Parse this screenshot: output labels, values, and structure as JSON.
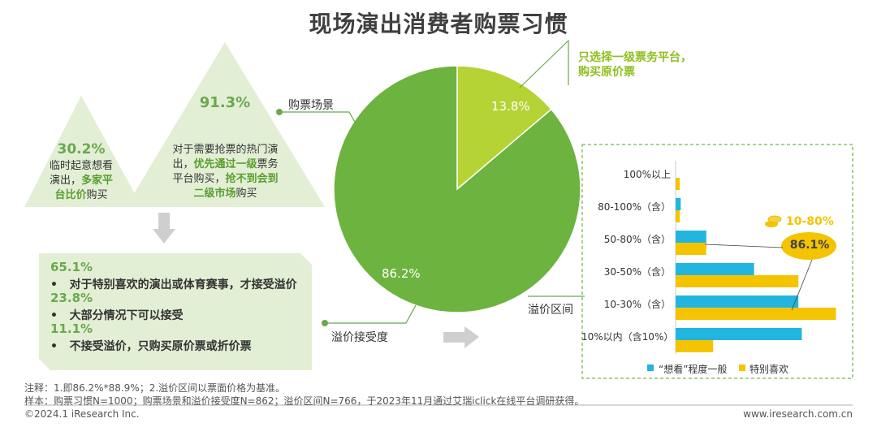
{
  "title": "现场演出消费者购票习惯",
  "triangles": {
    "small": {
      "pct": "30.2%",
      "line1": "临时起意想看",
      "line2a": "演出，",
      "line2b": "多家平",
      "line3a": "台比价",
      "line3b": "购买"
    },
    "large": {
      "pct": "91.3%",
      "line1": "对于需要抢票的热门演",
      "line2a": "出，",
      "line2b": "优先通过一级",
      "line2c": "票务",
      "line3a": "平台购买，",
      "line3b": "抢不到会到",
      "line4a": "二级市场",
      "line4b": "购买"
    }
  },
  "acceptance": {
    "items": [
      {
        "pct": "65.1%",
        "text": "对于特别喜欢的演出或体育赛事，才接受溢价"
      },
      {
        "pct": "23.8%",
        "text": "大部分情况下可以接受"
      },
      {
        "pct": "11.1%",
        "text": "不接受溢价，只购买原价票或折价票"
      }
    ],
    "bullet": "•"
  },
  "pie_callouts": {
    "scene": "购票场景",
    "accept": "溢价接受度",
    "range": "溢价区间",
    "top_line1": "只选择一级票务平台，",
    "top_line2": "购买原价票"
  },
  "chart_data": [
    {
      "type": "pie",
      "labels": [
        "13.8%",
        "86.2%"
      ],
      "values": [
        13.8,
        86.2
      ],
      "colors": [
        "#b5d334",
        "#6db33f"
      ]
    },
    {
      "type": "bar",
      "orientation": "horizontal",
      "categories": [
        "100%以上",
        "80-100%（含）",
        "50-80%（含）",
        "30-50%（含）",
        "10-30%（含）",
        "10%以内（含10%）"
      ],
      "series": [
        {
          "name": "“想看”程度一般",
          "color": "#22b5e0",
          "values": [
            0,
            1.5,
            9,
            23,
            36,
            37
          ]
        },
        {
          "name": "特别喜欢",
          "color": "#f5c400",
          "values": [
            1.2,
            1.2,
            9,
            36,
            47,
            11
          ]
        }
      ],
      "xlim": [
        0,
        50
      ],
      "annotations": [
        {
          "text": "10-80%",
          "color": "#f5c400"
        },
        {
          "text": "86.1%",
          "color": "#404040"
        }
      ]
    }
  ],
  "note": {
    "line1": "注释：1.即86.2%*88.9%；2.溢价区间以票面价格为基准。",
    "line2": "样本：购票习惯N=1000；购票场景和溢价接受度N=862；溢价区间N=766，于2023年11月通过艾瑞iclick在线平台调研获得。"
  },
  "footer": {
    "left": "©2024.1 iResearch Inc.",
    "right": "www.iresearch.com.cn"
  }
}
